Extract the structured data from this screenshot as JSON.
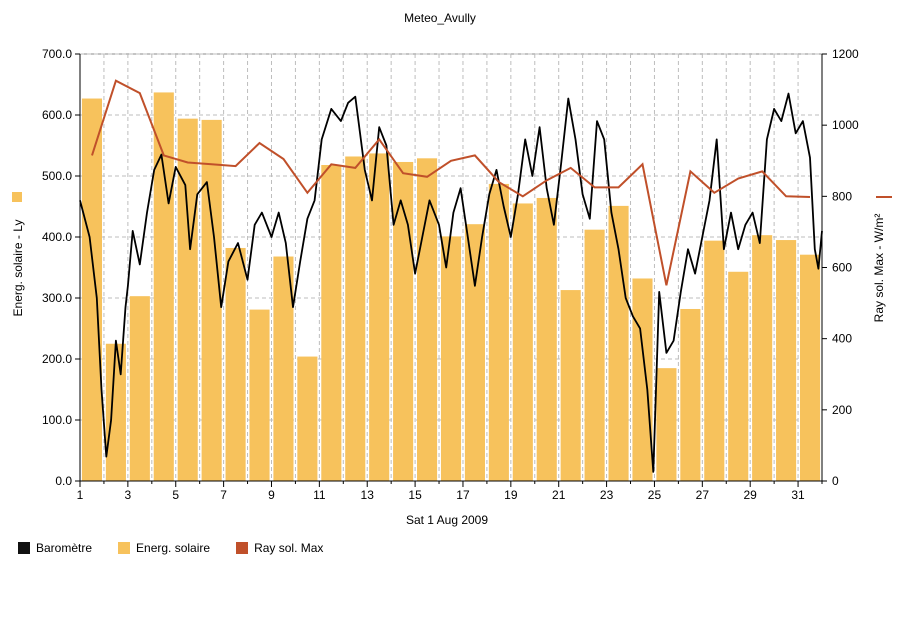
{
  "chart_data": {
    "type": "bar+line",
    "title": "Meteo_Avully",
    "xlabel": "Sat 1 Aug 2009",
    "ylabel_left": "Energ. solaire - Ly",
    "ylabel_right": "Ray sol. Max - W/m²",
    "ylim_left": [
      0,
      700
    ],
    "ylim_right": [
      0,
      1200
    ],
    "yticks_left": [
      "0.0",
      "100.0",
      "200.0",
      "300.0",
      "400.0",
      "500.0",
      "600.0",
      "700.0"
    ],
    "yticks_right": [
      "0",
      "200",
      "400",
      "600",
      "800",
      "1000",
      "1200"
    ],
    "xticks": [
      "1",
      "3",
      "5",
      "7",
      "9",
      "11",
      "13",
      "15",
      "17",
      "19",
      "21",
      "23",
      "25",
      "27",
      "29",
      "31"
    ],
    "grid": true,
    "legend_position": "bottom-left",
    "colors": {
      "barometre": "#000000",
      "energ_solaire": "#f7c25c",
      "ray_sol_max": "#c0502a",
      "grid": "#bdbdbd"
    },
    "days": [
      1,
      2,
      3,
      4,
      5,
      6,
      7,
      8,
      9,
      10,
      11,
      12,
      13,
      14,
      15,
      16,
      17,
      18,
      19,
      20,
      21,
      22,
      23,
      24,
      25,
      26,
      27,
      28,
      29,
      30,
      31
    ],
    "series": [
      {
        "name": "Energ. solaire",
        "type": "bar",
        "axis": "left",
        "values": [
          627,
          225,
          303,
          637,
          594,
          592,
          382,
          281,
          368,
          204,
          518,
          532,
          537,
          523,
          529,
          401,
          421,
          487,
          455,
          464,
          313,
          412,
          451,
          332,
          185,
          282,
          394,
          343,
          403,
          395,
          371
        ]
      },
      {
        "name": "Ray sol. Max",
        "type": "line",
        "axis": "right",
        "values": [
          915,
          1125,
          1090,
          915,
          895,
          890,
          885,
          950,
          905,
          810,
          890,
          880,
          960,
          865,
          855,
          900,
          915,
          840,
          800,
          845,
          880,
          825,
          825,
          890,
          550,
          870,
          810,
          850,
          870,
          800,
          798
        ]
      },
      {
        "name": "Baromètre",
        "type": "line",
        "axis": "left",
        "points": [
          [
            1.0,
            460
          ],
          [
            1.4,
            400
          ],
          [
            1.7,
            300
          ],
          [
            1.9,
            150
          ],
          [
            2.1,
            40
          ],
          [
            2.3,
            100
          ],
          [
            2.5,
            230
          ],
          [
            2.7,
            175
          ],
          [
            2.9,
            285
          ],
          [
            3.0,
            320
          ],
          [
            3.2,
            410
          ],
          [
            3.5,
            355
          ],
          [
            3.8,
            440
          ],
          [
            4.1,
            510
          ],
          [
            4.4,
            535
          ],
          [
            4.7,
            455
          ],
          [
            5.0,
            515
          ],
          [
            5.4,
            485
          ],
          [
            5.6,
            380
          ],
          [
            5.9,
            470
          ],
          [
            6.3,
            490
          ],
          [
            6.6,
            400
          ],
          [
            6.9,
            285
          ],
          [
            7.2,
            360
          ],
          [
            7.6,
            390
          ],
          [
            8.0,
            330
          ],
          [
            8.3,
            420
          ],
          [
            8.6,
            440
          ],
          [
            9.0,
            400
          ],
          [
            9.3,
            440
          ],
          [
            9.6,
            390
          ],
          [
            9.9,
            285
          ],
          [
            10.2,
            360
          ],
          [
            10.5,
            430
          ],
          [
            10.8,
            460
          ],
          [
            11.1,
            560
          ],
          [
            11.5,
            610
          ],
          [
            11.9,
            590
          ],
          [
            12.2,
            620
          ],
          [
            12.5,
            630
          ],
          [
            12.9,
            510
          ],
          [
            13.2,
            460
          ],
          [
            13.5,
            580
          ],
          [
            13.8,
            550
          ],
          [
            14.1,
            420
          ],
          [
            14.4,
            460
          ],
          [
            14.7,
            420
          ],
          [
            15.0,
            340
          ],
          [
            15.3,
            400
          ],
          [
            15.6,
            460
          ],
          [
            16.0,
            420
          ],
          [
            16.3,
            350
          ],
          [
            16.6,
            440
          ],
          [
            16.9,
            480
          ],
          [
            17.2,
            400
          ],
          [
            17.5,
            320
          ],
          [
            17.8,
            400
          ],
          [
            18.1,
            470
          ],
          [
            18.4,
            510
          ],
          [
            18.7,
            450
          ],
          [
            19.0,
            400
          ],
          [
            19.3,
            470
          ],
          [
            19.6,
            560
          ],
          [
            19.9,
            500
          ],
          [
            20.2,
            580
          ],
          [
            20.5,
            480
          ],
          [
            20.8,
            420
          ],
          [
            21.1,
            520
          ],
          [
            21.4,
            627
          ],
          [
            21.7,
            560
          ],
          [
            22.0,
            470
          ],
          [
            22.3,
            430
          ],
          [
            22.6,
            590
          ],
          [
            22.9,
            560
          ],
          [
            23.2,
            440
          ],
          [
            23.5,
            380
          ],
          [
            23.8,
            300
          ],
          [
            24.1,
            270
          ],
          [
            24.4,
            250
          ],
          [
            24.7,
            150
          ],
          [
            24.95,
            15
          ],
          [
            25.2,
            310
          ],
          [
            25.5,
            210
          ],
          [
            25.8,
            230
          ],
          [
            26.1,
            310
          ],
          [
            26.4,
            380
          ],
          [
            26.7,
            340
          ],
          [
            27.0,
            400
          ],
          [
            27.3,
            460
          ],
          [
            27.6,
            560
          ],
          [
            27.9,
            380
          ],
          [
            28.2,
            440
          ],
          [
            28.5,
            380
          ],
          [
            28.8,
            420
          ],
          [
            29.1,
            440
          ],
          [
            29.4,
            390
          ],
          [
            29.7,
            560
          ],
          [
            30.0,
            610
          ],
          [
            30.3,
            590
          ],
          [
            30.6,
            635
          ],
          [
            30.9,
            570
          ],
          [
            31.2,
            590
          ],
          [
            31.5,
            530
          ],
          [
            31.7,
            380
          ],
          [
            31.85,
            348
          ],
          [
            32.0,
            410
          ]
        ]
      }
    ]
  },
  "legend": [
    {
      "label": "Baromètre",
      "color": "#111111"
    },
    {
      "label": "Energ. solaire",
      "color": "#f7c25c"
    },
    {
      "label": "Ray sol. Max",
      "color": "#c0502a"
    }
  ]
}
